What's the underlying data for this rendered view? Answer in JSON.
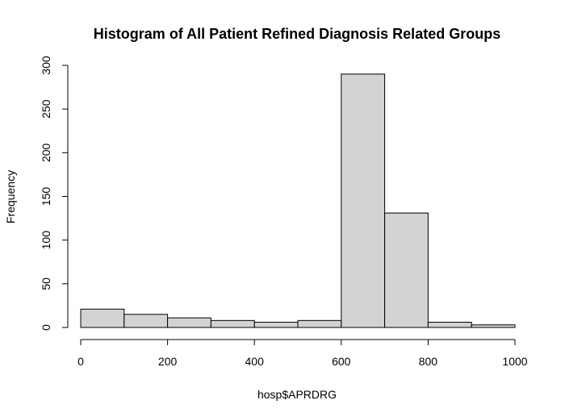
{
  "chart_data": {
    "type": "bar",
    "title": "Histogram of All Patient Refined Diagnosis Related Groups",
    "xlabel": "hosp$APRDRG",
    "ylabel": "Frequency",
    "bins": [
      {
        "from": 0,
        "to": 100,
        "count": 21
      },
      {
        "from": 100,
        "to": 200,
        "count": 15
      },
      {
        "from": 200,
        "to": 300,
        "count": 11
      },
      {
        "from": 300,
        "to": 400,
        "count": 8
      },
      {
        "from": 400,
        "to": 500,
        "count": 6
      },
      {
        "from": 500,
        "to": 600,
        "count": 8
      },
      {
        "from": 600,
        "to": 700,
        "count": 290
      },
      {
        "from": 700,
        "to": 800,
        "count": 131
      },
      {
        "from": 800,
        "to": 900,
        "count": 6
      },
      {
        "from": 900,
        "to": 1000,
        "count": 3
      }
    ],
    "xlim": [
      0,
      1000
    ],
    "ylim": [
      0,
      300
    ],
    "xticks": [
      0,
      200,
      400,
      600,
      800,
      1000
    ],
    "yticks": [
      0,
      50,
      100,
      150,
      200,
      250,
      300
    ],
    "grid": false,
    "bar_color": "#d3d3d3"
  }
}
